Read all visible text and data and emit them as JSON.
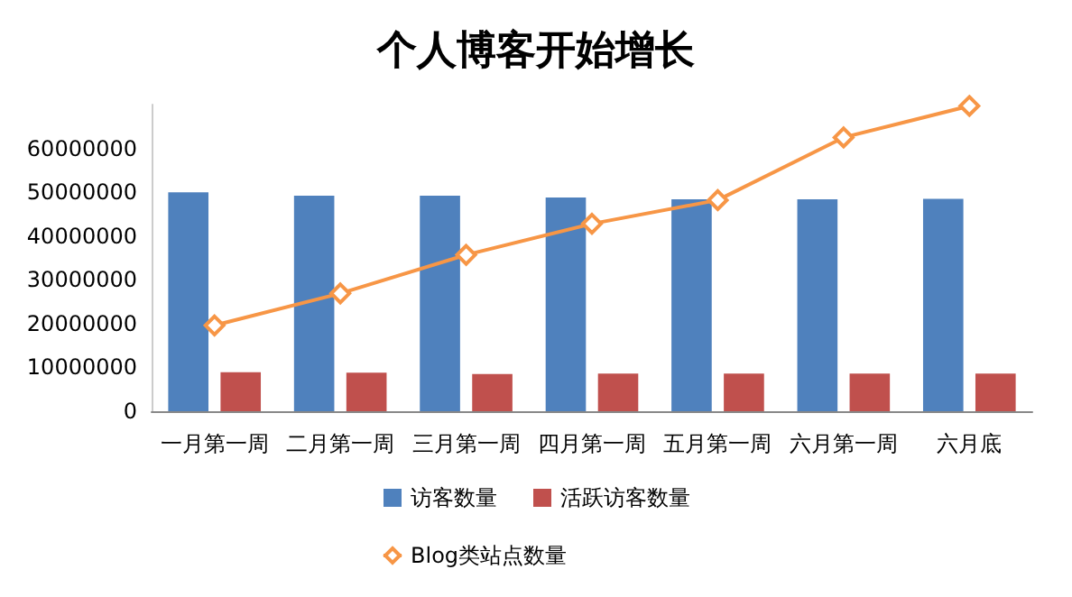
{
  "chart_data": {
    "type": "bar",
    "title": "个人博客开始增长",
    "categories": [
      "一月第一周",
      "二月第一周",
      "三月第一周",
      "四月第一周",
      "五月第一周",
      "六月第一周",
      "六月底"
    ],
    "series": [
      {
        "name": "访客数量",
        "color": "#4f81bd",
        "values": [
          50000000,
          49200000,
          49200000,
          48800000,
          48400000,
          48400000,
          48500000
        ]
      },
      {
        "name": "活跃访客数量",
        "color": "#c0504d",
        "values": [
          8900000,
          8800000,
          8500000,
          8600000,
          8600000,
          8600000,
          8600000
        ]
      },
      {
        "name": "Blog类站点数量",
        "type": "line",
        "color": "#f79646",
        "marker": "diamond",
        "values": [
          19600000,
          26900000,
          35700000,
          42800000,
          48200000,
          62500000,
          69700000
        ]
      }
    ],
    "ylim": [
      0,
      70000000
    ],
    "yticks": [
      0,
      10000000,
      20000000,
      30000000,
      40000000,
      50000000,
      60000000
    ],
    "grid": false,
    "legend": "bottom"
  }
}
